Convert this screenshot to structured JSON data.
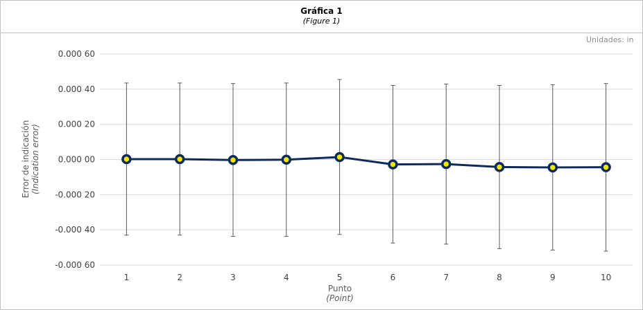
{
  "header": {
    "title": "Gráfica 1",
    "subtitle": "(Figure 1)"
  },
  "units_label": "Unidades: in",
  "chart_data": {
    "type": "line",
    "title": "Gráfica 1",
    "subtitle": "(Figure 1)",
    "xlabel": "Punto",
    "xlabel_en": "(Point)",
    "ylabel": "Error de indicación",
    "ylabel_en": "(Indication error)",
    "x": [
      1,
      2,
      3,
      4,
      5,
      6,
      7,
      8,
      9,
      10
    ],
    "x_ticks": [
      "1",
      "2",
      "3",
      "4",
      "5",
      "6",
      "7",
      "8",
      "9",
      "10"
    ],
    "y_ticks": [
      {
        "value": 0.0006,
        "label": "0.000 60"
      },
      {
        "value": 0.0004,
        "label": "0.000 40"
      },
      {
        "value": 0.0002,
        "label": "0.000 20"
      },
      {
        "value": 0.0,
        "label": "0.000 00"
      },
      {
        "value": -0.0002,
        "label": "-0.000 20"
      },
      {
        "value": -0.0004,
        "label": "-0.000 40"
      },
      {
        "value": -0.0006,
        "label": "-0.000 60"
      }
    ],
    "ylim": [
      -0.0006,
      0.0006
    ],
    "grid": true,
    "series": [
      {
        "values": [
          2e-06,
          2e-06,
          -3e-06,
          -1e-06,
          1.4e-05,
          -2.8e-05,
          -2.6e-05,
          -4.3e-05,
          -4.5e-05,
          -4.4e-05
        ],
        "err_upper": [
          0.000435,
          0.000435,
          0.000432,
          0.000435,
          0.000455,
          0.000421,
          0.000429,
          0.000421,
          0.000425,
          0.000432
        ],
        "err_lower": [
          -0.00043,
          -0.00043,
          -0.000437,
          -0.000437,
          -0.000426,
          -0.000475,
          -0.000481,
          -0.000507,
          -0.000515,
          -0.000521
        ],
        "line_color": "#0d2a5c",
        "marker_fill": "#f2e600"
      }
    ]
  }
}
